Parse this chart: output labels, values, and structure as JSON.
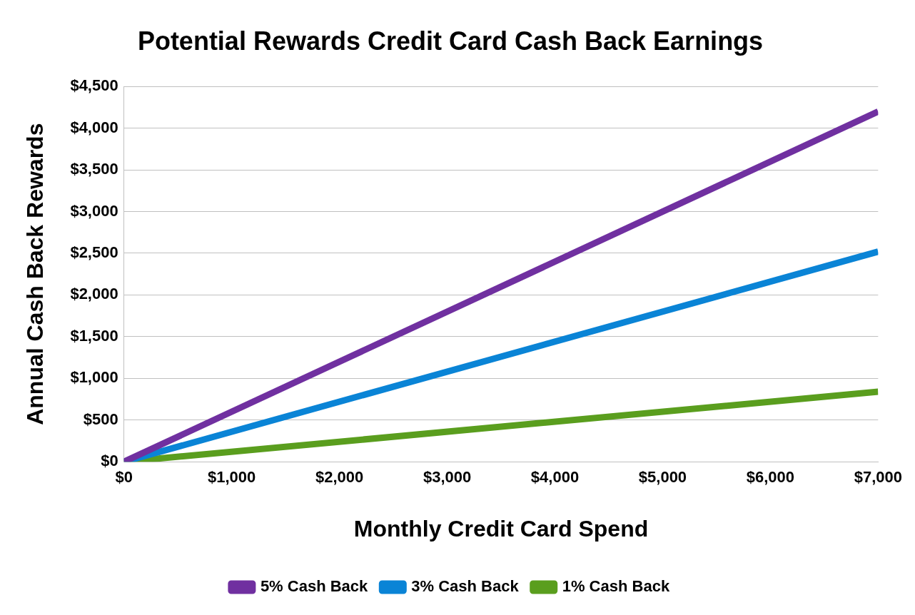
{
  "chart_data": {
    "type": "line",
    "title": "Potential Rewards Credit Card Cash Back Earnings",
    "xlabel": "Monthly Credit Card Spend",
    "ylabel": "Annual Cash Back Rewards",
    "x": [
      0,
      7000
    ],
    "series": [
      {
        "name": "5% Cash Back",
        "color": "#7030a0",
        "values": [
          0,
          4200
        ]
      },
      {
        "name": "3% Cash Back",
        "color": "#0a84d6",
        "values": [
          0,
          2520
        ]
      },
      {
        "name": "1% Cash Back",
        "color": "#5a9e1e",
        "values": [
          0,
          840
        ]
      }
    ],
    "xlim": [
      0,
      7000
    ],
    "xticks": [
      {
        "value": 0,
        "label": "$0"
      },
      {
        "value": 1000,
        "label": "$1,000"
      },
      {
        "value": 2000,
        "label": "$2,000"
      },
      {
        "value": 3000,
        "label": "$3,000"
      },
      {
        "value": 4000,
        "label": "$4,000"
      },
      {
        "value": 5000,
        "label": "$5,000"
      },
      {
        "value": 6000,
        "label": "$6,000"
      },
      {
        "value": 7000,
        "label": "$7,000"
      }
    ],
    "ylim": [
      0,
      4500
    ],
    "yticks": [
      {
        "value": 0,
        "label": "$0"
      },
      {
        "value": 500,
        "label": "$500"
      },
      {
        "value": 1000,
        "label": "$1,000"
      },
      {
        "value": 1500,
        "label": "$1,500"
      },
      {
        "value": 2000,
        "label": "$2,000"
      },
      {
        "value": 2500,
        "label": "$2,500"
      },
      {
        "value": 3000,
        "label": "$3,000"
      },
      {
        "value": 3500,
        "label": "$3,500"
      },
      {
        "value": 4000,
        "label": "$4,000"
      },
      {
        "value": 4500,
        "label": "$4,500"
      }
    ],
    "grid": "y",
    "legend": "bottom",
    "marker": "none",
    "line_style": "solid"
  }
}
